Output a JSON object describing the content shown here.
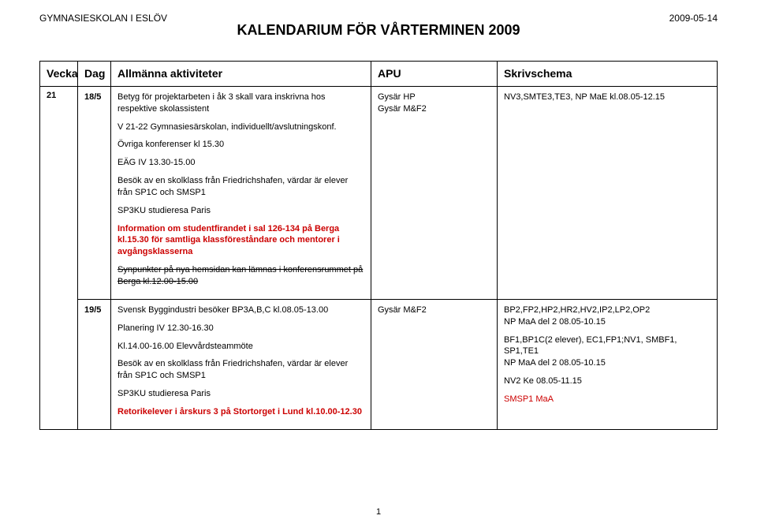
{
  "header": {
    "school": "GYMNASIESKOLAN I ESLÖV",
    "date": "2009-05-14",
    "title": "KALENDARIUM FÖR VÅRTERMINEN 2009"
  },
  "columns": {
    "vecka": "Vecka",
    "dag": "Dag",
    "act": "Allmänna aktiviteter",
    "apu": "APU",
    "skriv": "Skrivschema"
  },
  "week": "21",
  "rows": [
    {
      "dag": "18/5",
      "act": {
        "l1": "Betyg för projektarbeten i åk 3 skall vara inskrivna hos respektive skolassistent",
        "l2": "V 21-22 Gymnasiesärskolan, individuellt/avslutningskonf.",
        "l3": "Övriga konferenser kl 15.30",
        "l4": "EÄG IV 13.30-15.00",
        "l5": "Besök av en skolklass från Friedrichshafen, värdar är elever från SP1C och SMSP1",
        "l6": "SP3KU studieresa Paris",
        "l7": "Information om studentfirandet i sal 126-134 på Berga kl.15.30 för samtliga klassföreståndare och mentorer i avgångsklasserna",
        "l8": "Synpunkter på nya hemsidan kan lämnas i konferensrummet på Berga kl.12.00-15.00"
      },
      "apu": {
        "l1": "Gysär HP",
        "l2": "Gysär M&F2"
      },
      "skriv": {
        "l1": "NV3,SMTE3,TE3, NP MaE kl.08.05-12.15"
      }
    },
    {
      "dag": "19/5",
      "act": {
        "l1": "Svensk Byggindustri besöker BP3A,B,C kl.08.05-13.00",
        "l2": "Planering IV 12.30-16.30",
        "l3": "Kl.14.00-16.00 Elevvårdsteammöte",
        "l4": "Besök av en skolklass från Friedrichshafen, värdar är elever från SP1C och SMSP1",
        "l5": "SP3KU studieresa Paris",
        "l6": "Retorikelever i årskurs 3 på Stortorget i Lund kl.10.00-12.30"
      },
      "apu": {
        "l1": "Gysär M&F2"
      },
      "skriv": {
        "l1": "BP2,FP2,HP2,HR2,HV2,IP2,LP2,OP2",
        "l2": "NP MaA del 2 08.05-10.15",
        "l3": "BF1,BP1C(2 elever), EC1,FP1;NV1, SMBF1, SP1,TE1",
        "l4": "NP MaA del 2 08.05-10.15",
        "l5": "NV2 Ke 08.05-11.15",
        "l6": "SMSP1 MaA"
      }
    }
  ],
  "pagenum": "1"
}
